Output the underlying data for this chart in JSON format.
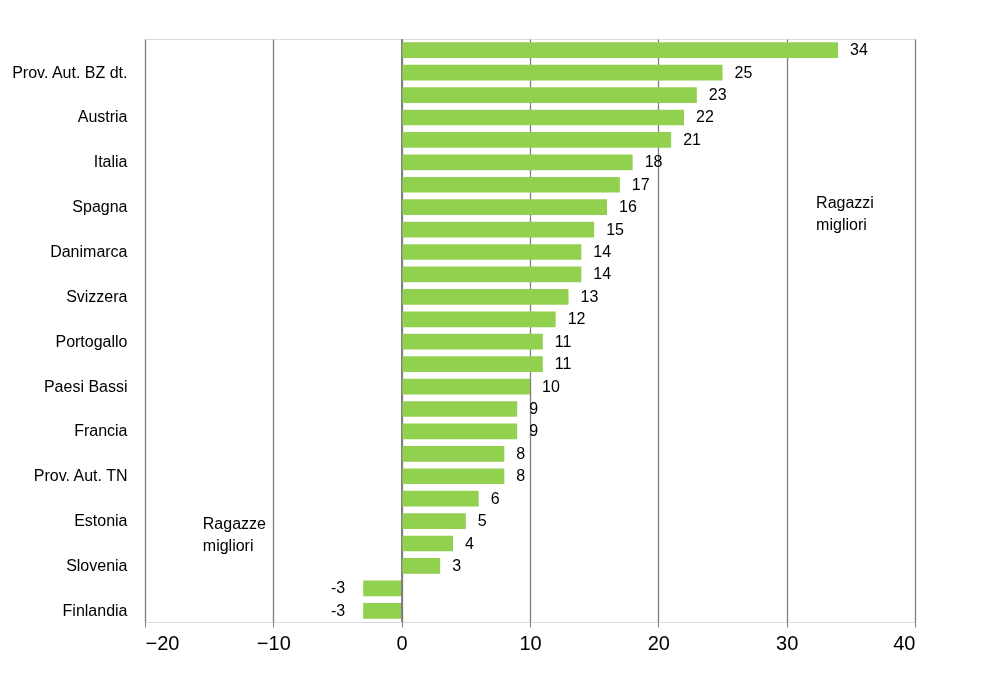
{
  "chart_data": {
    "type": "bar",
    "orientation": "horizontal",
    "categories": [
      null,
      "Prov. Aut. BZ dt.",
      null,
      "Austria",
      null,
      "Italia",
      null,
      "Spagna",
      null,
      "Danimarca",
      null,
      "Svizzera",
      null,
      "Portogallo",
      null,
      "Paesi Bassi",
      null,
      "Francia",
      null,
      "Prov. Aut. TN",
      null,
      "Estonia",
      null,
      "Slovenia",
      null,
      "Finlandia"
    ],
    "values": [
      34,
      25,
      23,
      22,
      21,
      18,
      17,
      16,
      15,
      14,
      14,
      13,
      12,
      11,
      11,
      10,
      9,
      9,
      8,
      8,
      6,
      5,
      4,
      3,
      -3,
      -3
    ],
    "color": "#92d050",
    "xlim": [
      -20,
      40
    ],
    "xticks": [
      -20,
      -10,
      0,
      10,
      20,
      30,
      40
    ],
    "grid": "x",
    "data_labels": true,
    "annotations": [
      "Ragazzi migliori",
      "Ragazze migliori"
    ]
  }
}
